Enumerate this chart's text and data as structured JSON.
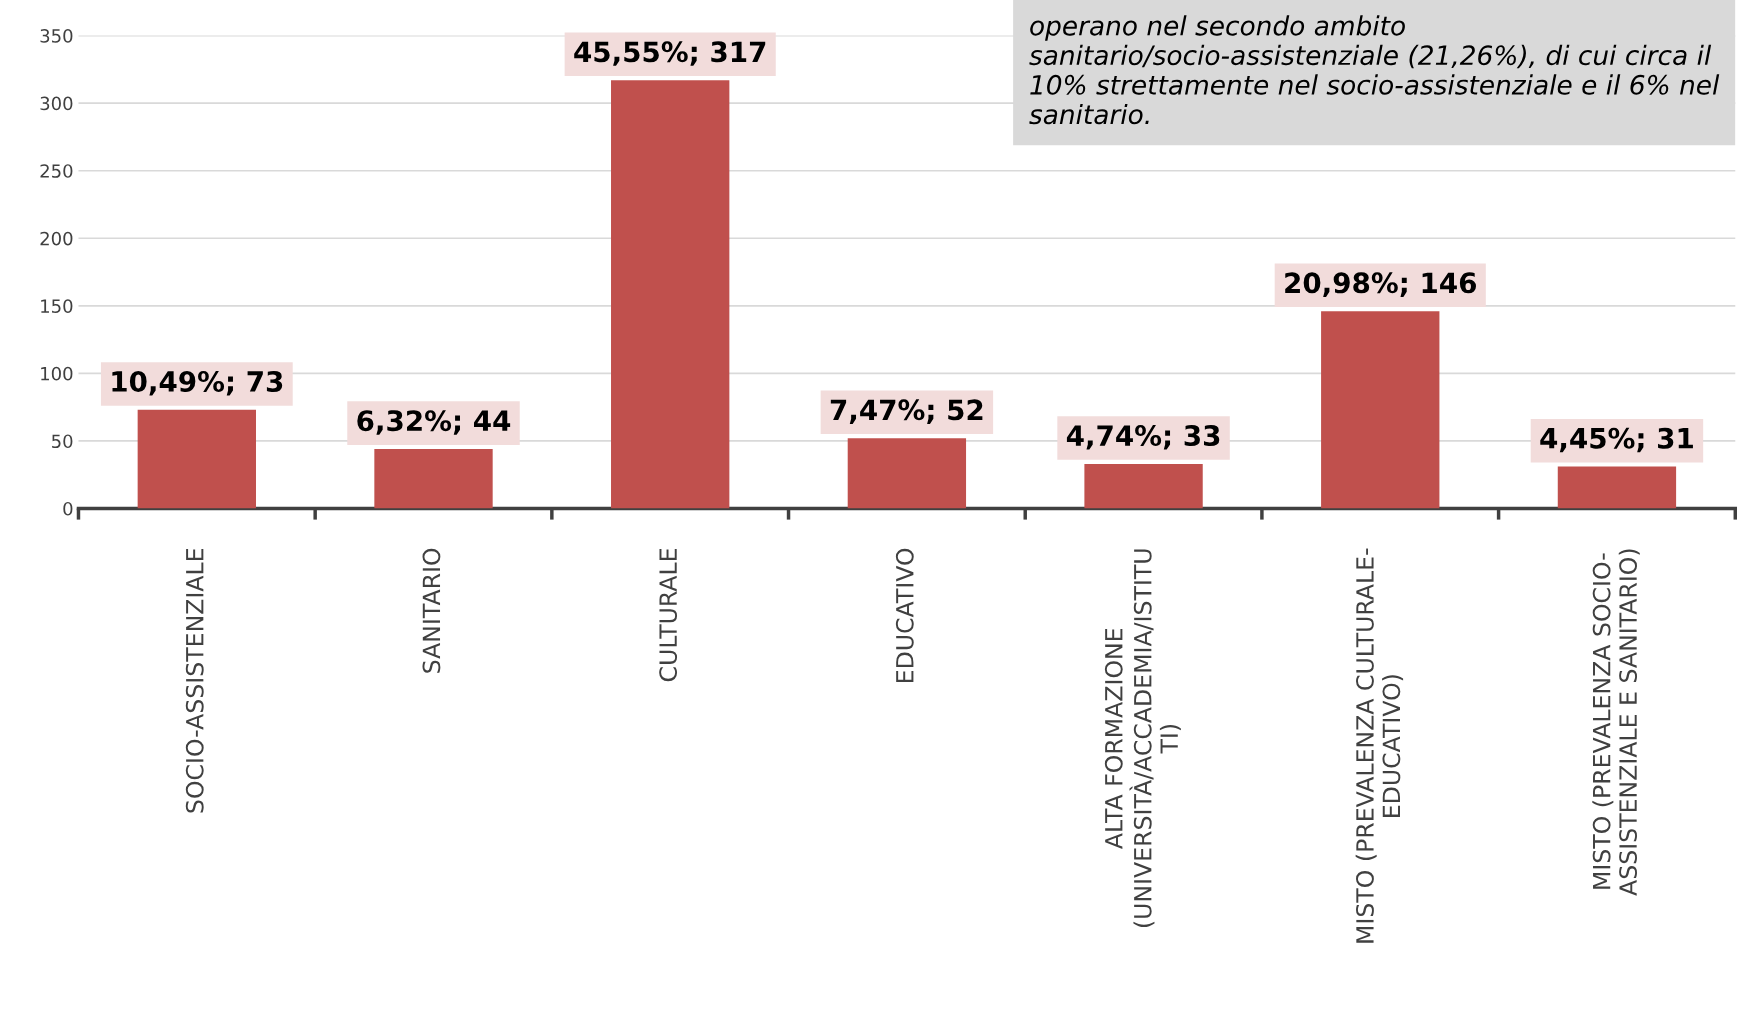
{
  "chart_data": {
    "type": "bar",
    "categories": [
      "SOCIO-ASSISTENZIALE",
      "SANITARIO",
      "CULTURALE",
      "EDUCATIVO",
      "ALTA FORMAZIONE (UNIVERSITÀ/ACCADEMIA/ISTITUTI)",
      "MISTO (PREVALENZA CULTURALE-EDUCATIVO)",
      "MISTO (PREVALENZA SOCIO-ASSISTENZIALE E SANITARIO)"
    ],
    "values": [
      73,
      44,
      317,
      52,
      33,
      146,
      31
    ],
    "value_labels": [
      "10,49%; 73",
      "6,32%; 44",
      "45,55%; 317",
      "7,47%; 52",
      "4,74%; 33",
      "20,98%; 146",
      "4,45%; 31"
    ],
    "color": "#c0504d",
    "ylim": [
      0,
      350
    ],
    "yticks": [
      0,
      50,
      100,
      150,
      200,
      250,
      300,
      350
    ],
    "grid": "y",
    "annotations": [
      "operano nel secondo ambito sanitario/socio-assistenziale (21,26%), di cui circa il 10% strettamente nel socio-assistenziale e il 6% nel sanitario."
    ]
  }
}
